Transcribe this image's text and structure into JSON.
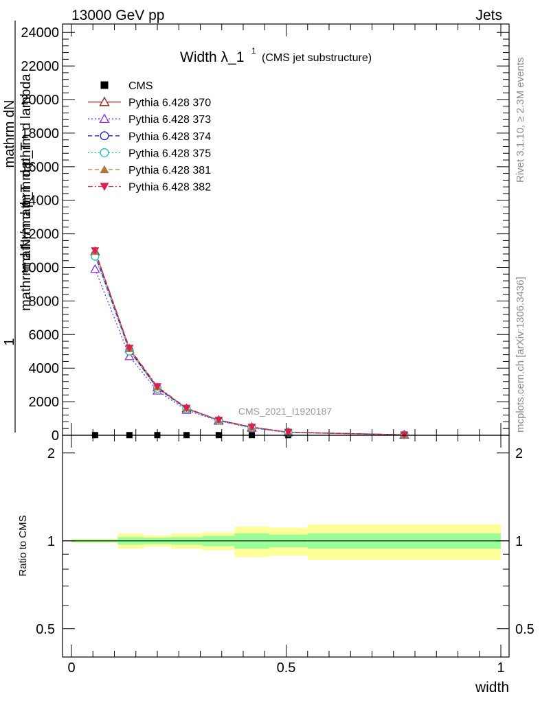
{
  "header": {
    "left": "13000 GeV pp",
    "right": "Jets"
  },
  "side_labels": {
    "rivet": "Rivet 3.1.10, ≥ 2.3M events",
    "mcplots": "mcplots.cern.ch [arXiv:1306.3436]"
  },
  "chart_data": {
    "type": "line",
    "title_main": "Width λ_1",
    "title_sup": "1",
    "title_sub": "(CMS jet substructure)",
    "watermark": "CMS_2021_I1920187",
    "ylabel_top": "mathrm dN",
    "ylabel_bottom": "mathrm d p_T mathrm d lambda",
    "ylabel_frac_num": "1",
    "ylabel_frac_den": "mathrm d N / mathrm d p_T",
    "xlabel": "width",
    "xlim": [
      0,
      1
    ],
    "ylim": [
      0,
      24500
    ],
    "x_ticks": [
      "0",
      "0.5",
      "1"
    ],
    "y_ticks": [
      "0",
      "2000",
      "4000",
      "6000",
      "8000",
      "10000",
      "12000",
      "14000",
      "16000",
      "18000",
      "20000",
      "22000",
      "24000"
    ],
    "x": [
      0.055,
      0.135,
      0.2,
      0.268,
      0.343,
      0.42,
      0.505,
      0.775
    ],
    "series": [
      {
        "name": "CMS",
        "color": "#000000",
        "marker": "square",
        "dash": "none",
        "values": [
          10,
          10,
          10,
          10,
          10,
          10,
          10,
          10
        ]
      },
      {
        "name": "Pythia 6.428 370",
        "color": "#8b1a1a",
        "marker": "triangle-open",
        "dash": "solid",
        "values": [
          10950,
          5150,
          2850,
          1600,
          900,
          480,
          180,
          30
        ]
      },
      {
        "name": "Pythia 6.428 373",
        "color": "#8a2be2",
        "marker": "triangle-open",
        "dash": "dot",
        "values": [
          9900,
          4700,
          2650,
          1500,
          850,
          430,
          160,
          25
        ]
      },
      {
        "name": "Pythia 6.428 374",
        "color": "#1e1ec8",
        "marker": "circle-open",
        "dash": "dash",
        "values": [
          10750,
          5050,
          2800,
          1580,
          880,
          460,
          175,
          28
        ]
      },
      {
        "name": "Pythia 6.428 375",
        "color": "#20c0b0",
        "marker": "circle-open",
        "dash": "dot",
        "values": [
          10650,
          5000,
          2780,
          1560,
          870,
          455,
          170,
          28
        ]
      },
      {
        "name": "Pythia 6.428 381",
        "color": "#b07840",
        "marker": "triangle-filled",
        "dash": "dash",
        "values": [
          10950,
          5150,
          2870,
          1610,
          905,
          485,
          182,
          30
        ]
      },
      {
        "name": "Pythia 6.428 382",
        "color": "#dc1e50",
        "marker": "triangle-down-filled",
        "dash": "dashdot",
        "values": [
          11000,
          5200,
          2900,
          1620,
          910,
          490,
          185,
          31
        ]
      }
    ],
    "ratio": {
      "ylabel": "Ratio to CMS",
      "y_ticks": [
        "0.5",
        "1",
        "2"
      ],
      "ylim": [
        0.4,
        2.3
      ],
      "scale": "log",
      "bins": [
        {
          "x0": 0.0,
          "x1": 0.108,
          "inner": 0.01,
          "outer": 0.015
        },
        {
          "x0": 0.108,
          "x1": 0.168,
          "inner": 0.03,
          "outer": 0.06
        },
        {
          "x0": 0.168,
          "x1": 0.232,
          "inner": 0.025,
          "outer": 0.045
        },
        {
          "x0": 0.232,
          "x1": 0.305,
          "inner": 0.03,
          "outer": 0.06
        },
        {
          "x0": 0.305,
          "x1": 0.38,
          "inner": 0.04,
          "outer": 0.07
        },
        {
          "x0": 0.38,
          "x1": 0.46,
          "inner": 0.06,
          "outer": 0.12
        },
        {
          "x0": 0.46,
          "x1": 0.55,
          "inner": 0.05,
          "outer": 0.11
        },
        {
          "x0": 0.55,
          "x1": 1.0,
          "inner": 0.06,
          "outer": 0.14
        }
      ]
    }
  }
}
